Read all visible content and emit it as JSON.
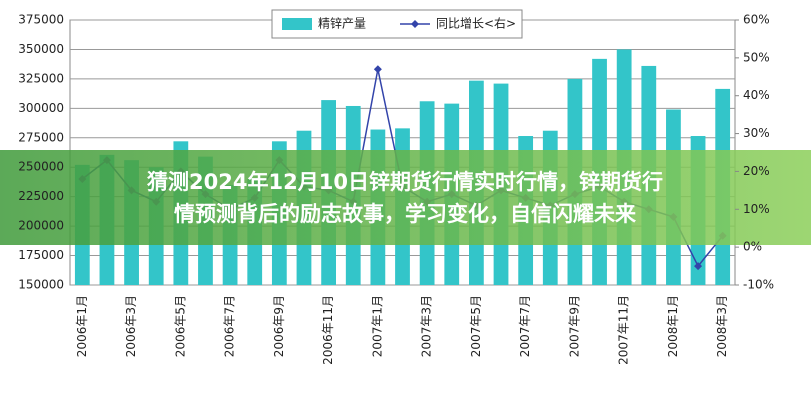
{
  "chart_data": {
    "type": "bar_line",
    "categories": [
      "2006年1月",
      null,
      "2006年3月",
      null,
      "2006年5月",
      null,
      "2006年7月",
      null,
      "2006年9月",
      null,
      "2006年11月",
      null,
      "2007年1月",
      null,
      "2007年3月",
      null,
      "2007年5月",
      null,
      "2007年7月",
      null,
      "2007年9月",
      null,
      "2007年11月",
      null,
      "2008年1月",
      null,
      "2008年3月"
    ],
    "series": [
      {
        "name": "精锌产量",
        "color": "#33c5c9",
        "kind": "bar",
        "values": [
          252000,
          260500,
          256000,
          250000,
          272000,
          259000,
          235000,
          240000,
          272000,
          281000,
          307000,
          302000,
          282000,
          283000,
          306000,
          304000,
          323500,
          321000,
          276500,
          281000,
          325000,
          342000,
          350000,
          336000,
          299000,
          276500,
          316500
        ]
      },
      {
        "name": "同比增长<右>",
        "color": "#3344aa",
        "kind": "line",
        "axis": "y2",
        "values": [
          18,
          23,
          15,
          12,
          20,
          14,
          10,
          13,
          23,
          16,
          15,
          12,
          47,
          16,
          12,
          14,
          11,
          15,
          13,
          11,
          14,
          16,
          12,
          10,
          8,
          -5,
          3
        ]
      }
    ],
    "ylim": [
      150000,
      375000
    ],
    "yticks": [
      150000,
      175000,
      200000,
      225000,
      250000,
      275000,
      300000,
      325000,
      350000,
      375000
    ],
    "y2lim": [
      -10,
      60
    ],
    "y2ticks": [
      {
        "value": -10,
        "label": "-10%"
      },
      {
        "value": 0,
        "label": "0%"
      },
      {
        "value": 10,
        "label": "10%"
      },
      {
        "value": 20,
        "label": "20%"
      },
      {
        "value": 30,
        "label": "30%"
      },
      {
        "value": 40,
        "label": "40%"
      },
      {
        "value": 50,
        "label": "50%"
      },
      {
        "value": 60,
        "label": "60%"
      }
    ],
    "grid": true
  },
  "overlay": {
    "lines": [
      "猜测2024年12月10日锌期货行情实时行情，锌期货行",
      "情预测背后的励志故事，学习变化，自信闪耀未来"
    ]
  }
}
